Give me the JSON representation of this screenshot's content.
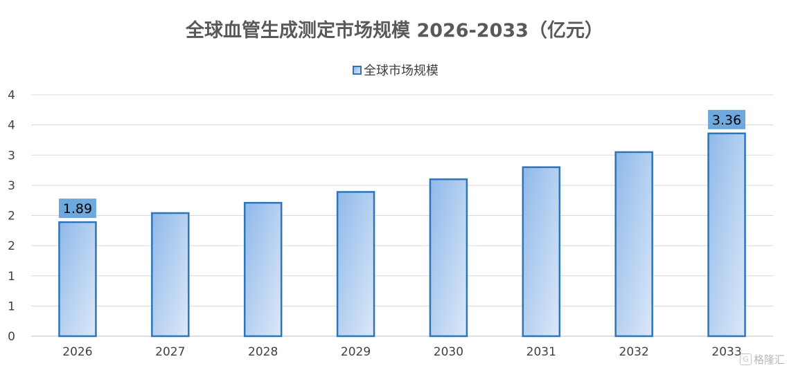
{
  "chart_data": {
    "type": "bar",
    "title": "全球血管生成测定市场规模 2026-2033（亿元）",
    "categories": [
      "2026",
      "2027",
      "2028",
      "2029",
      "2030",
      "2031",
      "2032",
      "2033"
    ],
    "series": [
      {
        "name": "全球市场规模",
        "values": [
          1.89,
          2.04,
          2.21,
          2.39,
          2.6,
          2.8,
          3.05,
          3.36
        ]
      }
    ],
    "ylim": [
      0,
      4
    ],
    "yticks": [
      0,
      0.5,
      1,
      1.5,
      2,
      2.5,
      3,
      3.5,
      4
    ],
    "ytick_labels": [
      "0",
      "1",
      "1",
      "2",
      "2",
      "3",
      "3",
      "4",
      "4"
    ],
    "data_labels": [
      {
        "category": "2026",
        "text": "1.89"
      },
      {
        "category": "2033",
        "text": "3.36"
      }
    ],
    "legend_position": "top-center",
    "grid": true,
    "colors": {
      "bar_border": "#2E75B6",
      "bar_fill_top": "#8FB9EA",
      "bar_fill_bottom": "#DCE8F8",
      "label_bg": "#6FA8DC",
      "grid": "#d9d9d9",
      "text": "#404040"
    }
  },
  "watermark": {
    "icon": "gelonghui-logo-icon",
    "text": "格隆汇"
  }
}
